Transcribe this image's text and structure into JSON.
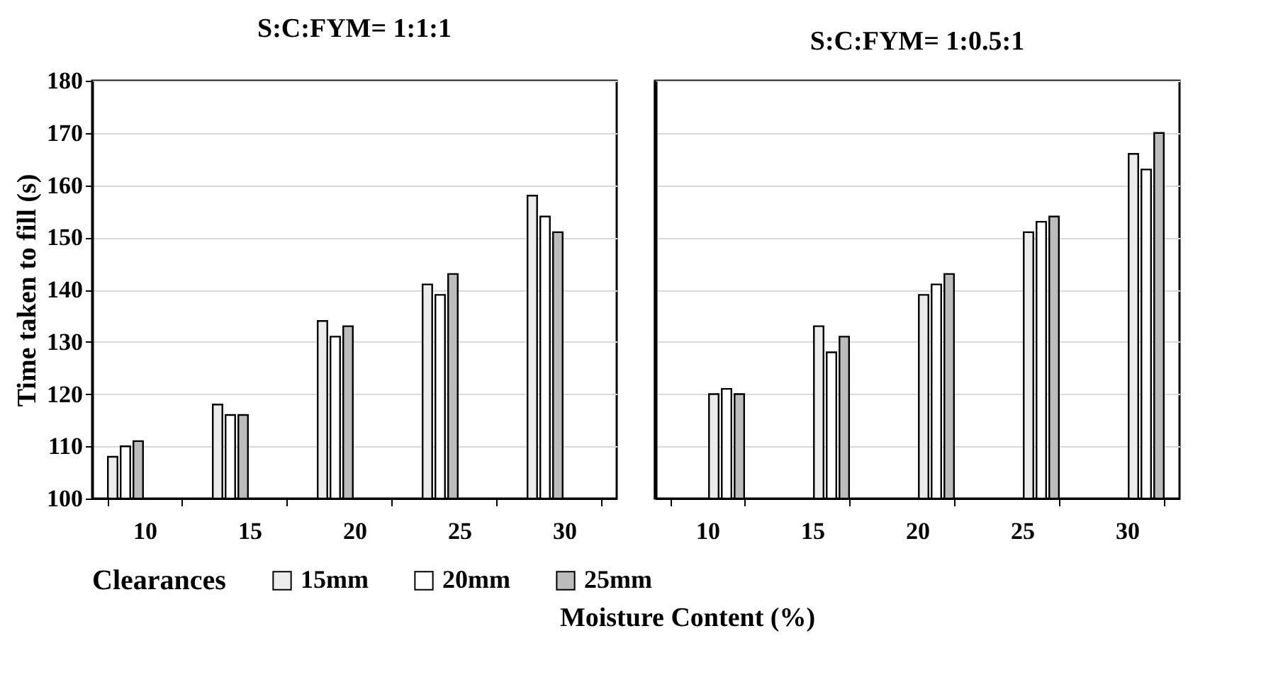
{
  "chart_data": [
    {
      "type": "bar",
      "title": "S:C:FYM= 1:1:1",
      "xlabel": "Moisture Content (%)",
      "ylabel": "Time taken to fill (s)",
      "legend_title": "Clearances",
      "legend": "bottom",
      "grid": "y",
      "categories": [
        "10",
        "15",
        "20",
        "25",
        "30"
      ],
      "ylim": [
        100,
        180
      ],
      "yticks": [
        100,
        110,
        120,
        130,
        140,
        150,
        160,
        170,
        180
      ],
      "series": [
        {
          "name": "15mm",
          "color": "#ececec",
          "values": [
            108,
            118,
            134,
            141,
            158
          ]
        },
        {
          "name": "20mm",
          "color": "#ffffff",
          "values": [
            110,
            116,
            131,
            139,
            154
          ]
        },
        {
          "name": "25mm",
          "color": "#bcbcbc",
          "values": [
            111,
            116,
            133,
            143,
            151
          ]
        }
      ]
    },
    {
      "type": "bar",
      "title": "S:C:FYM= 1:0.5:1",
      "grid": "y",
      "tick_labels": "x",
      "categories": [
        "10",
        "15",
        "20",
        "25",
        "30"
      ],
      "ylim": [
        100,
        180
      ],
      "yticks": [
        100,
        110,
        120,
        130,
        140,
        150,
        160,
        170,
        180
      ],
      "series": [
        {
          "color": "#ececec",
          "values": [
            120,
            133,
            139,
            151,
            166
          ]
        },
        {
          "color": "#ffffff",
          "values": [
            121,
            128,
            141,
            153,
            163
          ]
        },
        {
          "color": "#bcbcbc",
          "values": [
            120,
            131,
            143,
            154,
            170
          ]
        }
      ]
    }
  ]
}
